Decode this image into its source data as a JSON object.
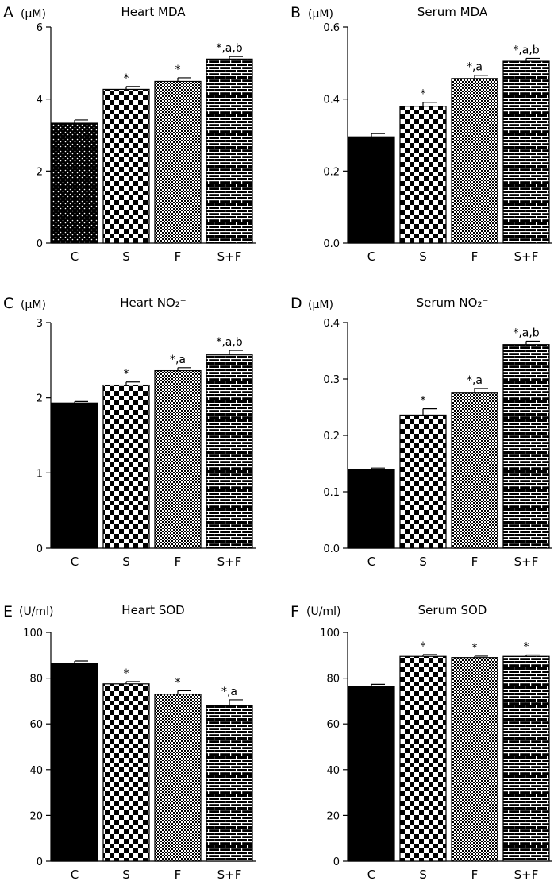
{
  "colors": {
    "ink": "#000000",
    "paper": "#ffffff"
  },
  "chart_data": [
    {
      "panel": "A",
      "title": "Heart MDA",
      "unit": "(μM)",
      "type": "bar",
      "categories": [
        "C",
        "S",
        "F",
        "S+F"
      ],
      "values": [
        3.33,
        4.27,
        4.49,
        5.11
      ],
      "errors": [
        0.09,
        0.08,
        0.1,
        0.07
      ],
      "significance": [
        "",
        "*",
        "*",
        "*,a,b"
      ],
      "patterns": [
        "dots",
        "checker",
        "fine-checker",
        "brick"
      ],
      "ylim": [
        0,
        6
      ],
      "yticks": [
        0,
        2,
        4,
        6
      ],
      "ytick_labels": [
        "0",
        "2",
        "4",
        "6"
      ]
    },
    {
      "panel": "B",
      "title": "Serum MDA",
      "unit": "(μM)",
      "type": "bar",
      "categories": [
        "C",
        "S",
        "F",
        "S+F"
      ],
      "values": [
        0.295,
        0.38,
        0.457,
        0.505
      ],
      "errors": [
        0.009,
        0.011,
        0.009,
        0.008
      ],
      "significance": [
        "",
        "*",
        "*,a",
        "*,a,b"
      ],
      "patterns": [
        "solid",
        "checker",
        "fine-checker",
        "brick"
      ],
      "ylim": [
        0,
        0.6
      ],
      "yticks": [
        0,
        0.2,
        0.4,
        0.6
      ],
      "ytick_labels": [
        "0.0",
        "0.2",
        "0.4",
        "0.6"
      ]
    },
    {
      "panel": "C",
      "title": "Heart NO₂⁻",
      "unit": "(μM)",
      "type": "bar",
      "categories": [
        "C",
        "S",
        "F",
        "S+F"
      ],
      "values": [
        1.93,
        2.17,
        2.36,
        2.57
      ],
      "errors": [
        0.02,
        0.04,
        0.04,
        0.06
      ],
      "significance": [
        "",
        "*",
        "*,a",
        "*,a,b"
      ],
      "patterns": [
        "solid",
        "checker",
        "fine-checker",
        "brick"
      ],
      "ylim": [
        0,
        3
      ],
      "yticks": [
        0,
        1,
        2,
        3
      ],
      "ytick_labels": [
        "0",
        "1",
        "2",
        "3"
      ]
    },
    {
      "panel": "D",
      "title": "Serum NO₂⁻",
      "unit": "(μM)",
      "type": "bar",
      "categories": [
        "C",
        "S",
        "F",
        "S+F"
      ],
      "values": [
        0.14,
        0.236,
        0.275,
        0.361
      ],
      "errors": [
        0.002,
        0.011,
        0.008,
        0.006
      ],
      "significance": [
        "",
        "*",
        "*,a",
        "*,a,b"
      ],
      "patterns": [
        "solid",
        "checker",
        "fine-checker",
        "brick"
      ],
      "ylim": [
        0,
        0.4
      ],
      "yticks": [
        0,
        0.1,
        0.2,
        0.3,
        0.4
      ],
      "ytick_labels": [
        "0.0",
        "0.1",
        "0.2",
        "0.3",
        "0.4"
      ]
    },
    {
      "panel": "E",
      "title": "Heart SOD",
      "unit": "(U/ml)",
      "type": "bar",
      "categories": [
        "C",
        "S",
        "F",
        "S+F"
      ],
      "values": [
        86.5,
        77.5,
        73.0,
        68.0
      ],
      "errors": [
        1.0,
        1.0,
        1.5,
        2.5
      ],
      "significance": [
        "",
        "*",
        "*",
        "*,a"
      ],
      "patterns": [
        "solid",
        "checker",
        "fine-checker",
        "brick"
      ],
      "ylim": [
        0,
        100
      ],
      "yticks": [
        0,
        20,
        40,
        60,
        80,
        100
      ],
      "ytick_labels": [
        "0",
        "20",
        "40",
        "60",
        "80",
        "100"
      ]
    },
    {
      "panel": "F",
      "title": "Serum SOD",
      "unit": "(U/ml)",
      "type": "bar",
      "categories": [
        "C",
        "S",
        "F",
        "S+F"
      ],
      "values": [
        76.5,
        89.5,
        89.0,
        89.5
      ],
      "errors": [
        0.8,
        0.8,
        0.6,
        0.6
      ],
      "significance": [
        "",
        "*",
        "*",
        "*"
      ],
      "patterns": [
        "solid",
        "checker",
        "fine-checker",
        "brick"
      ],
      "ylim": [
        0,
        100
      ],
      "yticks": [
        0,
        20,
        40,
        60,
        80,
        100
      ],
      "ytick_labels": [
        "0",
        "20",
        "40",
        "60",
        "80",
        "100"
      ]
    }
  ]
}
